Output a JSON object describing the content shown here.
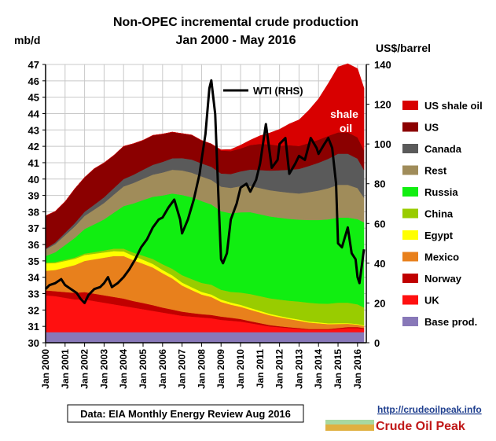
{
  "chart_data": {
    "type": "area",
    "title": "Non-OPEC incremental crude production",
    "subtitle": "Jan 2000 - May 2016",
    "ylabel_left": "mb/d",
    "ylabel_right": "US$/barrel",
    "ylim_left": [
      30,
      47
    ],
    "ylim_right": [
      0,
      140
    ],
    "yticks_left": [
      "30",
      "31",
      "32",
      "33",
      "34",
      "35",
      "36",
      "37",
      "38",
      "39",
      "40",
      "41",
      "42",
      "43",
      "44",
      "45",
      "46",
      "47"
    ],
    "yticks_right": [
      "0",
      "20",
      "40",
      "60",
      "80",
      "100",
      "120",
      "140"
    ],
    "xticks": [
      "Jan 2000",
      "Jan 2001",
      "Jan 2002",
      "Jan 2003",
      "Jan 2004",
      "Jan 2005",
      "Jan 2006",
      "Jan 2007",
      "Jan 2008",
      "Jan 2009",
      "Jan 2010",
      "Jan 2011",
      "Jan 2012",
      "Jan 2013",
      "Jan 2014",
      "Jan 2015",
      "Jan 2016"
    ],
    "x": [
      2000.0,
      2000.5,
      2001.0,
      2001.5,
      2002.0,
      2002.5,
      2003.0,
      2003.5,
      2004.0,
      2004.5,
      2005.0,
      2005.5,
      2006.0,
      2006.5,
      2007.0,
      2007.5,
      2008.0,
      2008.5,
      2009.0,
      2009.5,
      2010.0,
      2010.5,
      2011.0,
      2011.5,
      2012.0,
      2012.5,
      2013.0,
      2013.5,
      2014.0,
      2014.5,
      2015.0,
      2015.5,
      2016.0,
      2016.33
    ],
    "series": [
      {
        "name": "Base prod.",
        "color": "#8878b8",
        "values": [
          0.65,
          0.65,
          0.65,
          0.65,
          0.65,
          0.65,
          0.65,
          0.65,
          0.65,
          0.65,
          0.65,
          0.65,
          0.65,
          0.65,
          0.65,
          0.65,
          0.65,
          0.65,
          0.65,
          0.65,
          0.65,
          0.65,
          0.65,
          0.65,
          0.65,
          0.65,
          0.65,
          0.65,
          0.65,
          0.65,
          0.65,
          0.65,
          0.65,
          0.65
        ]
      },
      {
        "name": "UK",
        "color": "#ff1010",
        "values": [
          2.25,
          2.2,
          2.1,
          2.0,
          2.0,
          1.9,
          1.8,
          1.7,
          1.6,
          1.5,
          1.4,
          1.3,
          1.2,
          1.1,
          1.0,
          0.95,
          0.9,
          0.85,
          0.75,
          0.7,
          0.65,
          0.55,
          0.45,
          0.35,
          0.3,
          0.25,
          0.2,
          0.15,
          0.15,
          0.15,
          0.2,
          0.25,
          0.25,
          0.2
        ]
      },
      {
        "name": "Norway",
        "color": "#c00000",
        "values": [
          0.3,
          0.3,
          0.35,
          0.4,
          0.45,
          0.45,
          0.45,
          0.45,
          0.45,
          0.4,
          0.38,
          0.35,
          0.3,
          0.28,
          0.25,
          0.22,
          0.2,
          0.2,
          0.2,
          0.18,
          0.15,
          0.12,
          0.1,
          0.08,
          0.06,
          0.05,
          0.05,
          0.04,
          0.04,
          0.04,
          0.05,
          0.06,
          0.06,
          0.05
        ]
      },
      {
        "name": "Mexico",
        "color": "#e8801c",
        "values": [
          1.2,
          1.3,
          1.5,
          1.7,
          1.9,
          2.1,
          2.3,
          2.5,
          2.6,
          2.5,
          2.4,
          2.3,
          2.1,
          1.9,
          1.6,
          1.4,
          1.2,
          1.1,
          0.9,
          0.8,
          0.75,
          0.7,
          0.65,
          0.6,
          0.55,
          0.5,
          0.45,
          0.4,
          0.35,
          0.3,
          0.25,
          0.2,
          0.15,
          0.12
        ]
      },
      {
        "name": "Egypt",
        "color": "#ffff00",
        "values": [
          0.45,
          0.42,
          0.4,
          0.38,
          0.36,
          0.34,
          0.32,
          0.3,
          0.28,
          0.26,
          0.24,
          0.22,
          0.2,
          0.19,
          0.18,
          0.17,
          0.16,
          0.15,
          0.14,
          0.13,
          0.12,
          0.11,
          0.1,
          0.09,
          0.08,
          0.07,
          0.07,
          0.06,
          0.06,
          0.05,
          0.05,
          0.04,
          0.04,
          0.04
        ]
      },
      {
        "name": "China",
        "color": "#99cc00",
        "values": [
          0.05,
          0.06,
          0.07,
          0.08,
          0.09,
          0.1,
          0.12,
          0.15,
          0.17,
          0.2,
          0.25,
          0.3,
          0.35,
          0.4,
          0.45,
          0.5,
          0.55,
          0.6,
          0.6,
          0.65,
          0.75,
          0.85,
          0.9,
          0.95,
          1.0,
          1.05,
          1.1,
          1.15,
          1.15,
          1.2,
          1.25,
          1.25,
          1.2,
          1.1
        ]
      },
      {
        "name": "Russia",
        "color": "#11ee11",
        "values": [
          0.4,
          0.6,
          0.9,
          1.2,
          1.5,
          1.7,
          1.9,
          2.2,
          2.6,
          3.0,
          3.4,
          3.8,
          4.2,
          4.6,
          4.9,
          5.0,
          5.0,
          4.9,
          4.8,
          4.8,
          4.9,
          5.0,
          5.0,
          5.0,
          5.0,
          5.0,
          5.0,
          5.05,
          5.1,
          5.15,
          5.2,
          5.2,
          5.2,
          5.2
        ]
      },
      {
        "name": "Rest",
        "color": "#a08c5a",
        "values": [
          0.4,
          0.5,
          0.6,
          0.7,
          0.8,
          0.9,
          1.0,
          1.1,
          1.2,
          1.25,
          1.3,
          1.35,
          1.4,
          1.45,
          1.5,
          1.5,
          1.5,
          1.5,
          1.5,
          1.55,
          1.6,
          1.6,
          1.6,
          1.6,
          1.6,
          1.6,
          1.6,
          1.7,
          1.8,
          1.9,
          2.0,
          2.0,
          1.9,
          1.5
        ]
      },
      {
        "name": "Canada",
        "color": "#5a5a5a",
        "values": [
          0.05,
          0.1,
          0.15,
          0.2,
          0.25,
          0.3,
          0.35,
          0.4,
          0.45,
          0.5,
          0.55,
          0.6,
          0.65,
          0.7,
          0.75,
          0.8,
          0.8,
          0.8,
          0.8,
          0.85,
          0.9,
          1.0,
          1.1,
          1.2,
          1.3,
          1.4,
          1.5,
          1.6,
          1.7,
          1.8,
          1.9,
          1.9,
          1.8,
          1.7
        ]
      },
      {
        "name": "US",
        "color": "#8b0000",
        "values": [
          2.0,
          1.9,
          1.9,
          2.1,
          2.1,
          2.2,
          2.1,
          2.0,
          2.0,
          1.9,
          1.8,
          1.8,
          1.7,
          1.6,
          1.5,
          1.5,
          1.4,
          1.4,
          1.4,
          1.4,
          1.4,
          1.5,
          1.6,
          1.6,
          1.5,
          1.5,
          1.4,
          1.4,
          1.4,
          1.4,
          1.3,
          1.3,
          1.3,
          1.2
        ]
      },
      {
        "name": "US shale oil",
        "color": "#d80000",
        "values": [
          0,
          0,
          0,
          0,
          0,
          0,
          0,
          0,
          0,
          0,
          0,
          0,
          0,
          0,
          0,
          0,
          0,
          0,
          0.05,
          0.1,
          0.2,
          0.3,
          0.5,
          0.7,
          1.0,
          1.3,
          1.6,
          2.0,
          2.5,
          3.2,
          4.0,
          4.2,
          4.2,
          3.8
        ]
      }
    ],
    "wti": {
      "name": "WTI (RHS)",
      "color": "#000000",
      "x": [
        2000.0,
        2000.2,
        2000.5,
        2000.8,
        2001.0,
        2001.3,
        2001.6,
        2001.8,
        2002.0,
        2002.2,
        2002.5,
        2002.8,
        2003.0,
        2003.2,
        2003.4,
        2003.7,
        2004.0,
        2004.3,
        2004.6,
        2004.9,
        2005.2,
        2005.5,
        2005.8,
        2006.0,
        2006.3,
        2006.6,
        2006.9,
        2007.0,
        2007.3,
        2007.6,
        2007.9,
        2008.0,
        2008.2,
        2008.4,
        2008.5,
        2008.7,
        2008.9,
        2009.0,
        2009.1,
        2009.3,
        2009.5,
        2009.8,
        2010.0,
        2010.3,
        2010.5,
        2010.8,
        2011.0,
        2011.3,
        2011.6,
        2011.9,
        2012.0,
        2012.3,
        2012.5,
        2012.8,
        2013.0,
        2013.3,
        2013.6,
        2013.9,
        2014.0,
        2014.3,
        2014.5,
        2014.7,
        2014.9,
        2015.0,
        2015.2,
        2015.5,
        2015.7,
        2015.9,
        2016.0,
        2016.1,
        2016.33
      ],
      "values": [
        27,
        29,
        30,
        32,
        29,
        27,
        25,
        22,
        20,
        24,
        27,
        28,
        30,
        33,
        28,
        30,
        33,
        37,
        42,
        48,
        52,
        58,
        62,
        63,
        68,
        72,
        62,
        55,
        62,
        72,
        85,
        92,
        105,
        128,
        132,
        115,
        65,
        42,
        40,
        45,
        62,
        70,
        78,
        80,
        76,
        82,
        90,
        110,
        88,
        92,
        100,
        103,
        85,
        90,
        94,
        92,
        103,
        98,
        95,
        100,
        103,
        98,
        80,
        50,
        48,
        58,
        45,
        42,
        33,
        30,
        47
      ]
    }
  },
  "annotations": {
    "shale_label": "shale\noil"
  },
  "source_text": "Data: EIA Monthly Energy Review Aug 2016",
  "watermark": {
    "url": "http://crudeoilpeak.info",
    "name": "Crude Oil Peak"
  }
}
